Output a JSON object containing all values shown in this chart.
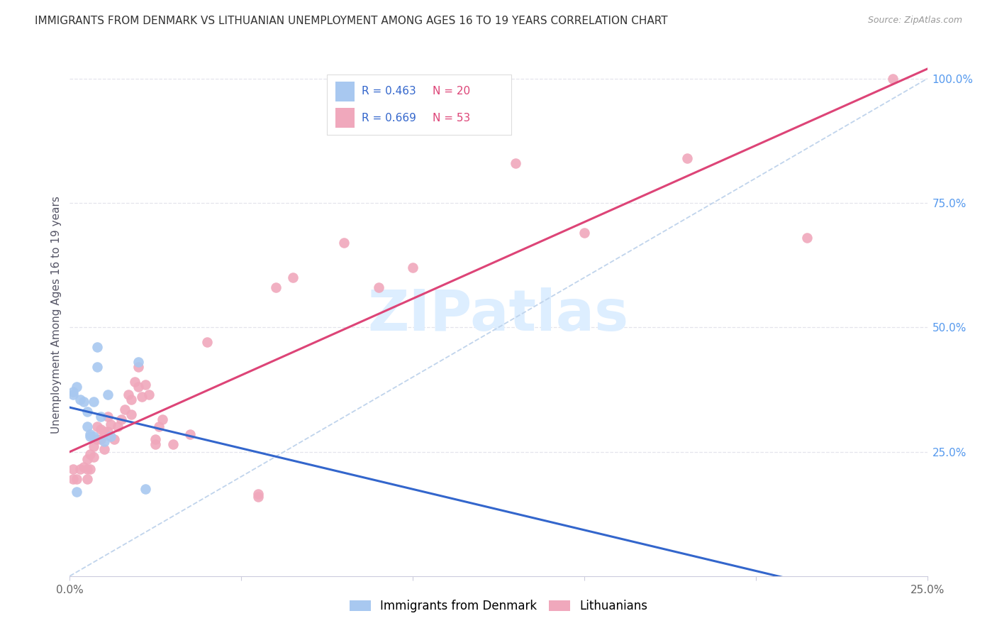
{
  "title": "IMMIGRANTS FROM DENMARK VS LITHUANIAN UNEMPLOYMENT AMONG AGES 16 TO 19 YEARS CORRELATION CHART",
  "source": "Source: ZipAtlas.com",
  "ylabel": "Unemployment Among Ages 16 to 19 years",
  "xlim": [
    0.0,
    0.25
  ],
  "ylim": [
    0.0,
    1.05
  ],
  "x_ticks": [
    0.0,
    0.05,
    0.1,
    0.15,
    0.2,
    0.25
  ],
  "x_tick_labels": [
    "0.0%",
    "",
    "",
    "",
    "",
    "25.0%"
  ],
  "y_ticks_right": [
    0.0,
    0.25,
    0.5,
    0.75,
    1.0
  ],
  "y_tick_labels_right": [
    "",
    "25.0%",
    "50.0%",
    "75.0%",
    "100.0%"
  ],
  "denmark_color": "#a8c8f0",
  "lithuanian_color": "#f0a8bc",
  "denmark_line_color": "#3366cc",
  "lithuanian_line_color": "#dd4477",
  "diagonal_color": "#c0d4ec",
  "r_denmark": 0.463,
  "n_denmark": 20,
  "r_lithuanian": 0.669,
  "n_lithuanian": 53,
  "legend_r_color": "#3366cc",
  "legend_n_color": "#dd4477",
  "watermark": "ZIPatlas",
  "watermark_color": "#ddeeff",
  "denmark_x": [
    0.001,
    0.001,
    0.002,
    0.002,
    0.003,
    0.004,
    0.005,
    0.005,
    0.006,
    0.006,
    0.007,
    0.007,
    0.008,
    0.008,
    0.009,
    0.01,
    0.011,
    0.012,
    0.02,
    0.022
  ],
  "denmark_y": [
    0.365,
    0.37,
    0.38,
    0.17,
    0.355,
    0.35,
    0.33,
    0.3,
    0.285,
    0.28,
    0.35,
    0.28,
    0.42,
    0.46,
    0.32,
    0.27,
    0.365,
    0.28,
    0.43,
    0.175
  ],
  "lithuanian_x": [
    0.001,
    0.001,
    0.002,
    0.003,
    0.004,
    0.005,
    0.005,
    0.005,
    0.006,
    0.006,
    0.007,
    0.007,
    0.008,
    0.008,
    0.009,
    0.009,
    0.01,
    0.01,
    0.011,
    0.011,
    0.012,
    0.013,
    0.014,
    0.015,
    0.016,
    0.017,
    0.018,
    0.018,
    0.019,
    0.02,
    0.02,
    0.021,
    0.022,
    0.023,
    0.025,
    0.025,
    0.026,
    0.027,
    0.03,
    0.035,
    0.04,
    0.055,
    0.055,
    0.06,
    0.065,
    0.08,
    0.09,
    0.1,
    0.13,
    0.15,
    0.18,
    0.215,
    0.24
  ],
  "lithuanian_y": [
    0.195,
    0.215,
    0.195,
    0.215,
    0.22,
    0.195,
    0.215,
    0.235,
    0.215,
    0.245,
    0.24,
    0.26,
    0.275,
    0.3,
    0.295,
    0.275,
    0.255,
    0.29,
    0.29,
    0.32,
    0.305,
    0.275,
    0.3,
    0.315,
    0.335,
    0.365,
    0.325,
    0.355,
    0.39,
    0.38,
    0.42,
    0.36,
    0.385,
    0.365,
    0.265,
    0.275,
    0.3,
    0.315,
    0.265,
    0.285,
    0.47,
    0.16,
    0.165,
    0.58,
    0.6,
    0.67,
    0.58,
    0.62,
    0.83,
    0.69,
    0.84,
    0.68,
    1.0
  ],
  "background_color": "#ffffff",
  "grid_color": "#e4e4ec"
}
